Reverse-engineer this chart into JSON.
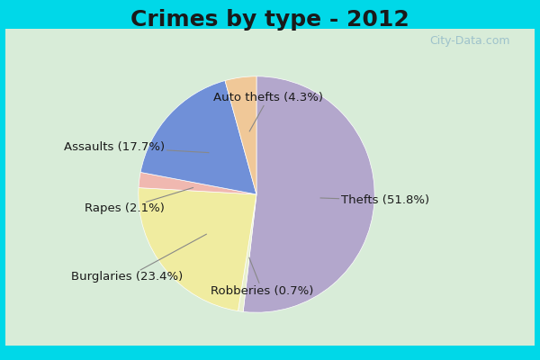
{
  "title": "Crimes by type - 2012",
  "title_fontsize": 18,
  "title_fontweight": "bold",
  "slices": [
    {
      "label": "Thefts (51.8%)",
      "value": 51.8,
      "color": "#b3a7cc"
    },
    {
      "label": "Robberies (0.7%)",
      "value": 0.7,
      "color": "#e8f0d0"
    },
    {
      "label": "Burglaries (23.4%)",
      "value": 23.4,
      "color": "#f0eca0"
    },
    {
      "label": "Rapes (2.1%)",
      "value": 2.1,
      "color": "#f0b8b0"
    },
    {
      "label": "Assaults (17.7%)",
      "value": 17.7,
      "color": "#7090d8"
    },
    {
      "label": "Auto thefts (4.3%)",
      "value": 4.3,
      "color": "#f0c898"
    }
  ],
  "background_top": "#00d8e8",
  "background_inner": "#d8ecd8",
  "label_fontsize": 9.5,
  "label_color": "#1a1a1a"
}
